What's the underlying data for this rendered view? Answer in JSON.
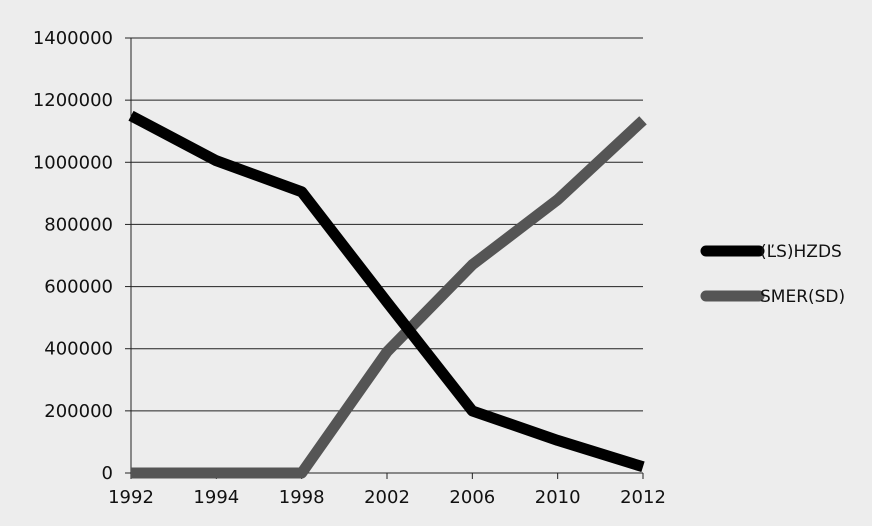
{
  "chart_data": {
    "type": "line",
    "title": "",
    "xlabel": "",
    "ylabel": "",
    "x": [
      1992,
      1994,
      1998,
      2002,
      2006,
      2010,
      2012
    ],
    "x_tick_labels": [
      "1992",
      "1994",
      "1998",
      "2002",
      "2006",
      "2010",
      "2012"
    ],
    "xlim": [
      1992,
      2012
    ],
    "x_scale": "categorical-equal-spacing",
    "ylim": [
      0,
      1400000
    ],
    "y_ticks": [
      0,
      200000,
      400000,
      600000,
      800000,
      1000000,
      1200000,
      1400000
    ],
    "y_tick_labels": [
      "0",
      "200000",
      "400000",
      "600000",
      "800000",
      "1000000",
      "1200000",
      "1400000"
    ],
    "grid": "horizontal",
    "legend_position": "right",
    "series": [
      {
        "name": "(ĽS)HZDS",
        "color": "#000000",
        "values": [
          1150000,
          1005000,
          905000,
          550000,
          200000,
          105000,
          20000
        ]
      },
      {
        "name": "SMER(SD)",
        "color": "#555555",
        "values": [
          0,
          0,
          0,
          390000,
          670000,
          880000,
          1135000
        ]
      }
    ]
  }
}
